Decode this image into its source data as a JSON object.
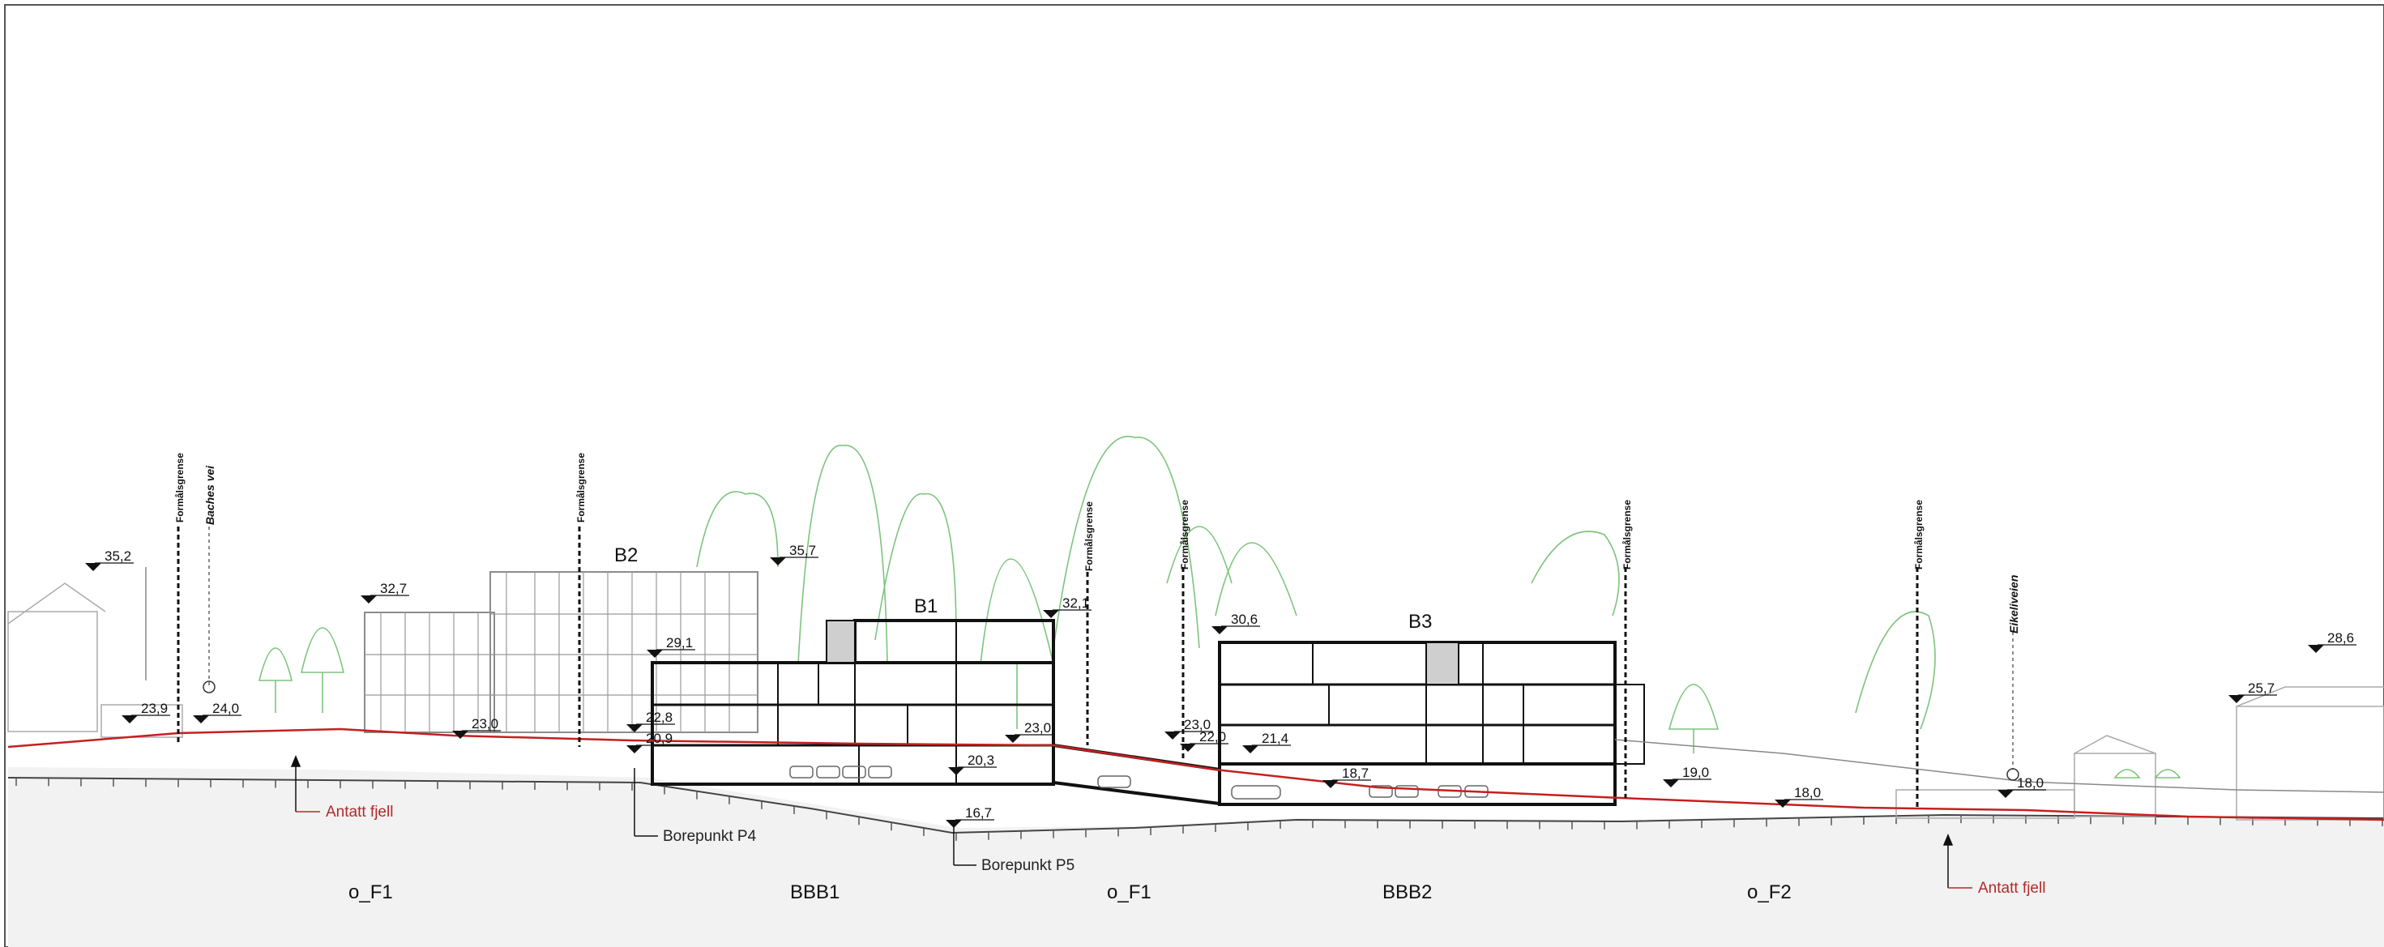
{
  "colors": {
    "terrain_line": "#c42020",
    "tree": "#7cc47c",
    "building_bg": "#9a9a9a",
    "section": "#111111",
    "ground_fill": "#f2f2f2",
    "frame": "#555555"
  },
  "buildings": [
    {
      "id": "b2",
      "label": "B2"
    },
    {
      "id": "b1",
      "label": "B1"
    },
    {
      "id": "b3",
      "label": "B3"
    }
  ],
  "levels": [
    "35,2",
    "32,7",
    "23,9",
    "24,0",
    "23,0",
    "29,1",
    "22,8",
    "20,9",
    "35,7",
    "20,3",
    "16,7",
    "23,0",
    "32,1",
    "23,0",
    "22,0",
    "30,6",
    "21,4",
    "18,7",
    "19,0",
    "18,0",
    "18,0",
    "25,7",
    "28,6"
  ],
  "boundary_labels": [
    "Formålsgrense",
    "Formålsgrense",
    "Formålsgrense",
    "Formålsgrense",
    "Formålsgrense",
    "Formålsgrense"
  ],
  "road_labels": [
    "Baches vei",
    "Eikeliveien"
  ],
  "notes": {
    "antatt_fjell_left": "Antatt fjell",
    "antatt_fjell_right": "Antatt fjell",
    "borepunkt_p4": "Borepunkt P4",
    "borepunkt_p5": "Borepunkt P5"
  },
  "zones": [
    "o_F1",
    "BBB1",
    "o_F1",
    "BBB2",
    "o_F2"
  ]
}
